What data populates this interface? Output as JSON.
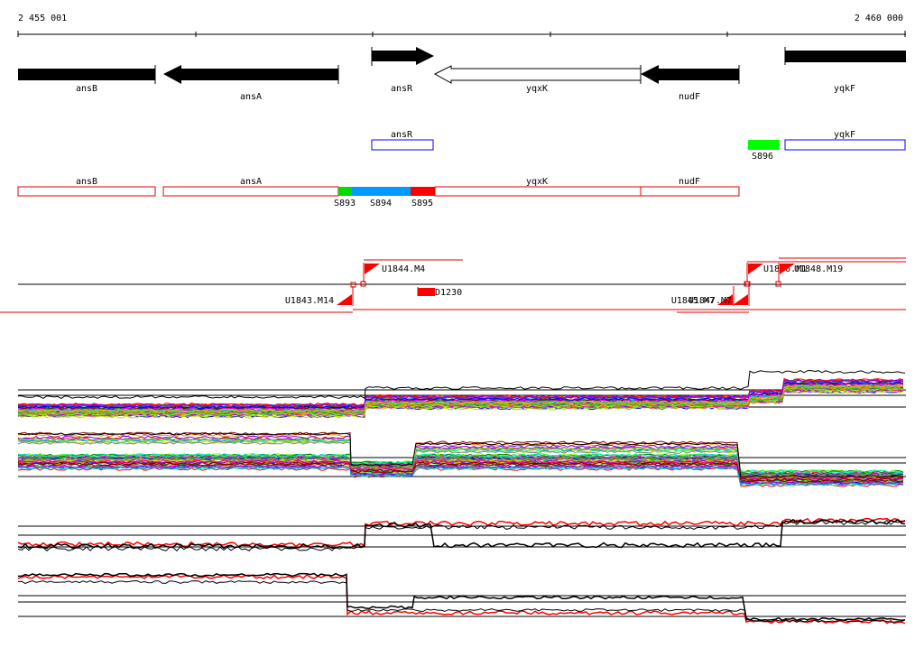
{
  "coordinates": {
    "start": "2 455 001",
    "end": "2 460 000",
    "start_value": 2455001,
    "end_value": 2460000
  },
  "colors": {
    "black": "#000000",
    "red": "#ff0000",
    "green": "#00ff00",
    "blue": "#0000ff",
    "cyan": "#0099ff",
    "border_red": "#e00000"
  },
  "genes": [
    {
      "name": "ansB",
      "strand": "-"
    },
    {
      "name": "ansA",
      "strand": "-"
    },
    {
      "name": "ansR",
      "strand": "+"
    },
    {
      "name": "yqxK",
      "strand": "-",
      "outline": true
    },
    {
      "name": "nudF",
      "strand": "-"
    },
    {
      "name": "yqkF",
      "strand": "+"
    }
  ],
  "transcripts_up": [
    {
      "name": "ansR"
    },
    {
      "name": "S896"
    },
    {
      "name": "yqkF"
    }
  ],
  "transcripts_down": [
    {
      "name": "ansB"
    },
    {
      "name": "ansA"
    },
    {
      "name": "S893"
    },
    {
      "name": "S894"
    },
    {
      "name": "S895"
    },
    {
      "name": "yqxK"
    },
    {
      "name": "nudF"
    }
  ],
  "upshifts": [
    {
      "name": "U1844.M4"
    },
    {
      "name": "U1846.M1"
    },
    {
      "name": "U1848.M19"
    },
    {
      "name": "D1230"
    },
    {
      "name": "U1843.M14"
    },
    {
      "name": "U1845.M7"
    },
    {
      "name": "U1847.M7"
    }
  ]
}
